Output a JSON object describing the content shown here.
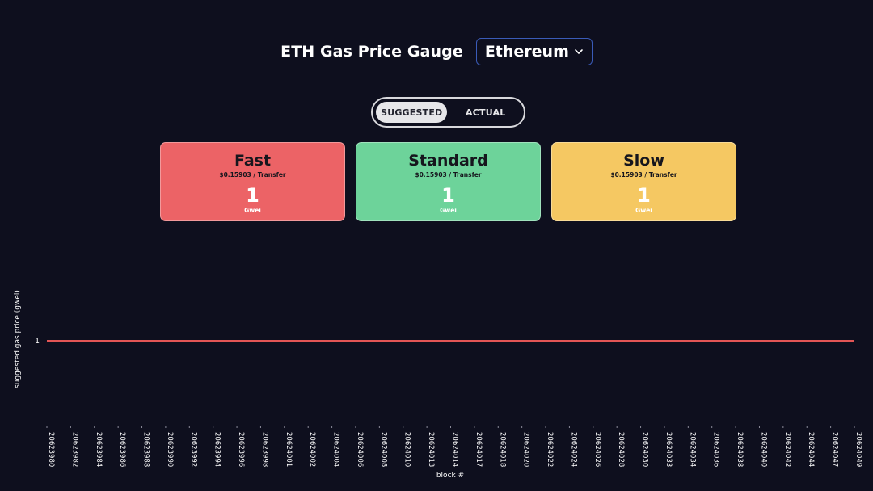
{
  "header": {
    "title": "ETH Gas Price Gauge",
    "network": "Ethereum",
    "network_icon": "chevron-down-icon"
  },
  "toggle": {
    "suggested": "SUGGESTED",
    "actual": "ACTUAL",
    "active": "suggested"
  },
  "cards": [
    {
      "name": "Fast",
      "cost": "$0.15903 / Transfer",
      "price": "1",
      "unit": "Gwei",
      "color": "#ec6366"
    },
    {
      "name": "Standard",
      "cost": "$0.15903 / Transfer",
      "price": "1",
      "unit": "Gwei",
      "color": "#6dd39a"
    },
    {
      "name": "Slow",
      "cost": "$0.15903 / Transfer",
      "price": "1",
      "unit": "Gwei",
      "color": "#f5c862"
    }
  ],
  "chart_data": {
    "type": "line",
    "ylabel": "suggested gas price (gwei)",
    "xlabel": "block #",
    "yticks": [
      "1"
    ],
    "line_color": "#e25555",
    "x": [
      "20623980",
      "20623982",
      "20623984",
      "20623986",
      "20623988",
      "20623990",
      "20623992",
      "20623994",
      "20623996",
      "20623998",
      "20624001",
      "20624002",
      "20624004",
      "20624006",
      "20624008",
      "20624010",
      "20624013",
      "20624014",
      "20624017",
      "20624018",
      "20624020",
      "20624022",
      "20624024",
      "20624026",
      "20624028",
      "20624030",
      "20624033",
      "20624034",
      "20624036",
      "20624038",
      "20624040",
      "20624042",
      "20624044",
      "20624047",
      "20624049"
    ],
    "series": [
      {
        "values": [
          1,
          1,
          1,
          1,
          1,
          1,
          1,
          1,
          1,
          1,
          1,
          1,
          1,
          1,
          1,
          1,
          1,
          1,
          1,
          1,
          1,
          1,
          1,
          1,
          1,
          1,
          1,
          1,
          1,
          1,
          1,
          1,
          1,
          1,
          1
        ]
      }
    ]
  }
}
